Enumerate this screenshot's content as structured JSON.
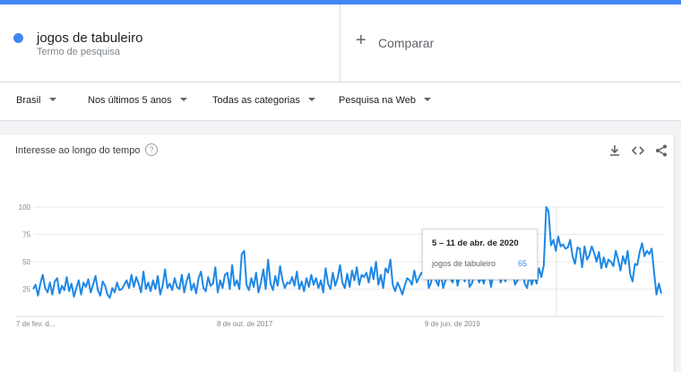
{
  "colors": {
    "accent": "#4285f4",
    "line": "#1e88e5",
    "grid": "#e0e0e0"
  },
  "search_term": {
    "name": "jogos de tabuleiro",
    "subtitle": "Termo de pesquisa"
  },
  "compare": {
    "label": "Comparar"
  },
  "filters": [
    {
      "label": "Brasil"
    },
    {
      "label": "Nos últimos 5 anos"
    },
    {
      "label": "Todas as categorias"
    },
    {
      "label": "Pesquisa na Web"
    }
  ],
  "card": {
    "title": "Interesse ao longo do tempo",
    "icons": [
      "help-icon",
      "download-icon",
      "embed-icon",
      "share-icon"
    ]
  },
  "tooltip": {
    "date": "5 – 11 de abr. de 2020",
    "series": "jogos de tabuleiro",
    "value": "65"
  },
  "chart_data": {
    "type": "line",
    "ylim": [
      0,
      100
    ],
    "yticks": [
      25,
      50,
      75,
      100
    ],
    "xtick_labels": [
      "7 de fev. d...",
      "8 de out. de 2017",
      "9 de jun. de 2019"
    ],
    "series": [
      {
        "name": "jogos de tabuleiro",
        "values": [
          25,
          29,
          19,
          30,
          38,
          26,
          22,
          31,
          20,
          32,
          35,
          21,
          28,
          24,
          36,
          23,
          30,
          18,
          26,
          33,
          20,
          31,
          27,
          34,
          22,
          29,
          37,
          24,
          19,
          32,
          28,
          20,
          17,
          26,
          22,
          31,
          24,
          25,
          29,
          33,
          26,
          38,
          27,
          36,
          30,
          22,
          41,
          25,
          31,
          23,
          33,
          25,
          37,
          20,
          28,
          43,
          26,
          30,
          24,
          35,
          27,
          25,
          38,
          22,
          32,
          39,
          24,
          30,
          21,
          35,
          41,
          26,
          23,
          36,
          28,
          30,
          45,
          22,
          33,
          26,
          38,
          40,
          25,
          47,
          28,
          33,
          25,
          57,
          60,
          29,
          24,
          35,
          27,
          40,
          22,
          31,
          43,
          25,
          52,
          30,
          24,
          37,
          28,
          46,
          33,
          26,
          31,
          30,
          36,
          28,
          41,
          25,
          32,
          23,
          35,
          27,
          38,
          29,
          35,
          26,
          33,
          22,
          44,
          30,
          25,
          40,
          28,
          35,
          47,
          31,
          26,
          39,
          27,
          42,
          33,
          45,
          29,
          38,
          36,
          40,
          31,
          45,
          34,
          50,
          29,
          38,
          26,
          44,
          40,
          52,
          29,
          23,
          31,
          26,
          20,
          28,
          35,
          33,
          29,
          42,
          31,
          36,
          40,
          37,
          50,
          26,
          31,
          55,
          33,
          28,
          41,
          26,
          33,
          44,
          35,
          31,
          48,
          28,
          38,
          44,
          32,
          50,
          27,
          30,
          38,
          41,
          31,
          36,
          30,
          44,
          39,
          27,
          40,
          35,
          48,
          31,
          38,
          32,
          48,
          36,
          42,
          29,
          33,
          35,
          48,
          30,
          26,
          38,
          29,
          37,
          30,
          44,
          36,
          47,
          100,
          96,
          65,
          70,
          60,
          73,
          64,
          66,
          62,
          63,
          70,
          55,
          48,
          63,
          62,
          45,
          64,
          52,
          56,
          64,
          58,
          50,
          59,
          44,
          54,
          45,
          52,
          50,
          46,
          60,
          52,
          42,
          55,
          48,
          60,
          39,
          32,
          48,
          47,
          59,
          67,
          55,
          60,
          57,
          62,
          40,
          20,
          30,
          21
        ]
      }
    ]
  }
}
